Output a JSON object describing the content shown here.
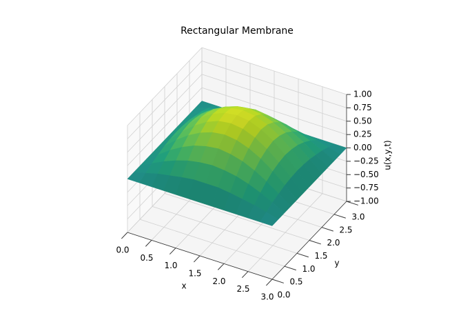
{
  "chart_data": {
    "type": "surface",
    "title": "Rectangular Membrane",
    "x_label": "x",
    "y_label": "y",
    "z_label": "u(x,y,t)",
    "colormap": "viridis",
    "x": [
      0,
      0.25,
      0.5,
      0.75,
      1,
      1.25,
      1.5,
      1.75,
      2,
      2.25,
      2.5,
      2.75,
      3
    ],
    "y": [
      0,
      0.25,
      0.5,
      0.75,
      1,
      1.25,
      1.5,
      1.75,
      2,
      2.25,
      2.5,
      2.75,
      3
    ],
    "z": [
      [
        0,
        0,
        0,
        0,
        0,
        0,
        0,
        0,
        0,
        0,
        0,
        0,
        0
      ],
      [
        0,
        0.06,
        0.12,
        0.16,
        0.2,
        0.23,
        0.23,
        0.23,
        0.2,
        0.16,
        0.12,
        0.06,
        0
      ],
      [
        0,
        0.12,
        0.23,
        0.32,
        0.39,
        0.43,
        0.45,
        0.43,
        0.39,
        0.32,
        0.23,
        0.12,
        0
      ],
      [
        0,
        0.16,
        0.32,
        0.45,
        0.55,
        0.61,
        0.64,
        0.61,
        0.55,
        0.45,
        0.32,
        0.16,
        0
      ],
      [
        0,
        0.2,
        0.39,
        0.55,
        0.67,
        0.75,
        0.78,
        0.75,
        0.67,
        0.55,
        0.39,
        0.2,
        0
      ],
      [
        0,
        0.22,
        0.43,
        0.61,
        0.75,
        0.84,
        0.87,
        0.84,
        0.75,
        0.61,
        0.43,
        0.22,
        0
      ],
      [
        0,
        0.23,
        0.45,
        0.64,
        0.78,
        0.87,
        0.9,
        0.87,
        0.78,
        0.64,
        0.45,
        0.23,
        0
      ],
      [
        0,
        0.22,
        0.43,
        0.61,
        0.75,
        0.84,
        0.87,
        0.84,
        0.75,
        0.61,
        0.43,
        0.22,
        0
      ],
      [
        0,
        0.2,
        0.39,
        0.55,
        0.67,
        0.75,
        0.78,
        0.75,
        0.67,
        0.55,
        0.39,
        0.2,
        0
      ],
      [
        0,
        0.16,
        0.32,
        0.45,
        0.55,
        0.61,
        0.64,
        0.61,
        0.55,
        0.45,
        0.32,
        0.16,
        0
      ],
      [
        0,
        0.12,
        0.23,
        0.32,
        0.39,
        0.43,
        0.45,
        0.43,
        0.39,
        0.32,
        0.23,
        0.12,
        0
      ],
      [
        0,
        0.06,
        0.12,
        0.16,
        0.2,
        0.23,
        0.23,
        0.23,
        0.2,
        0.16,
        0.12,
        0.06,
        0
      ],
      [
        0,
        0,
        0,
        0,
        0,
        0,
        0,
        0,
        0,
        0,
        0,
        0,
        0
      ]
    ],
    "xlim": [
      0,
      3
    ],
    "ylim": [
      0,
      3
    ],
    "zlim": [
      -1,
      1
    ],
    "xticks": [
      {
        "value": 0,
        "label": "0.0"
      },
      0.5,
      {
        "value": 1,
        "label": "1.0"
      },
      1.5,
      {
        "value": 2,
        "label": "2.0"
      },
      2.5,
      {
        "value": 3,
        "label": "3.0"
      }
    ],
    "yticks": [
      {
        "value": 0,
        "label": "0.0"
      },
      0.5,
      {
        "value": 1,
        "label": "1.0"
      },
      1.5,
      {
        "value": 2,
        "label": "2.0"
      },
      2.5,
      {
        "value": 3,
        "label": "3.0"
      }
    ],
    "zticks": [
      {
        "value": -1,
        "label": "−1.00"
      },
      {
        "value": -0.75,
        "label": "−0.75"
      },
      {
        "value": -0.5,
        "label": "−0.50"
      },
      {
        "value": -0.25,
        "label": "−0.25"
      },
      {
        "value": 0,
        "label": "0.00"
      },
      {
        "value": 0.25,
        "label": "0.25"
      },
      {
        "value": 0.5,
        "label": "0.50"
      },
      {
        "value": 0.75,
        "label": "0.75"
      },
      {
        "value": 1,
        "label": "1.00"
      }
    ],
    "grid": true
  }
}
